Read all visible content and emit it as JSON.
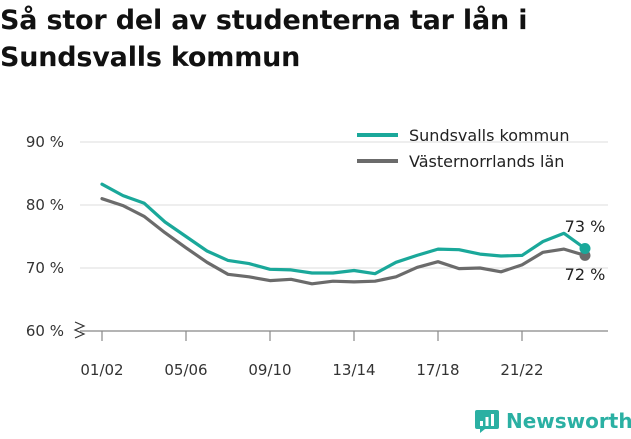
{
  "title": "Så stor del av studenterna tar lån i Sundsvalls kommun",
  "brand": {
    "name": "Newsworthy",
    "icon": "newsworthy-logo-icon",
    "color": "#2bb0a3"
  },
  "chart_data": {
    "type": "line",
    "title": "Så stor del av studenterna tar lån i Sundsvalls kommun",
    "xlabel": "",
    "ylabel": "",
    "x": [
      "01/02",
      "02/03",
      "03/04",
      "04/05",
      "05/06",
      "06/07",
      "07/08",
      "08/09",
      "09/10",
      "10/11",
      "11/12",
      "12/13",
      "13/14",
      "14/15",
      "15/16",
      "16/17",
      "17/18",
      "18/19",
      "19/20",
      "20/21",
      "21/22",
      "22/23",
      "23/24",
      "24/25"
    ],
    "xticks": [
      "01/02",
      "05/06",
      "09/10",
      "13/14",
      "17/18",
      "21/22"
    ],
    "ylim": [
      58,
      92
    ],
    "yticks": [
      60,
      70,
      80,
      90
    ],
    "ytick_labels": [
      "60 %",
      "70 %",
      "80 %",
      "90 %"
    ],
    "grid": true,
    "axis_break": true,
    "legend_position": "top-right",
    "series": [
      {
        "name": "Sundsvalls kommun",
        "color": "#1aa89a",
        "values": [
          83.3,
          81.5,
          80.3,
          77.3,
          75.0,
          72.7,
          71.2,
          70.7,
          69.8,
          69.7,
          69.2,
          69.2,
          69.6,
          69.1,
          70.9,
          72.0,
          73.0,
          72.9,
          72.2,
          71.9,
          72.0,
          74.2,
          75.5,
          73.1
        ],
        "end_label": "73 %"
      },
      {
        "name": "Västernorrlands län",
        "color": "#6b6b6b",
        "values": [
          81.0,
          79.9,
          78.2,
          75.6,
          73.2,
          70.9,
          69.0,
          68.6,
          68.0,
          68.2,
          67.5,
          67.9,
          67.8,
          67.9,
          68.6,
          70.1,
          71.0,
          69.9,
          70.0,
          69.4,
          70.5,
          72.5,
          73.0,
          72.0
        ],
        "end_label": "72 %"
      }
    ]
  }
}
